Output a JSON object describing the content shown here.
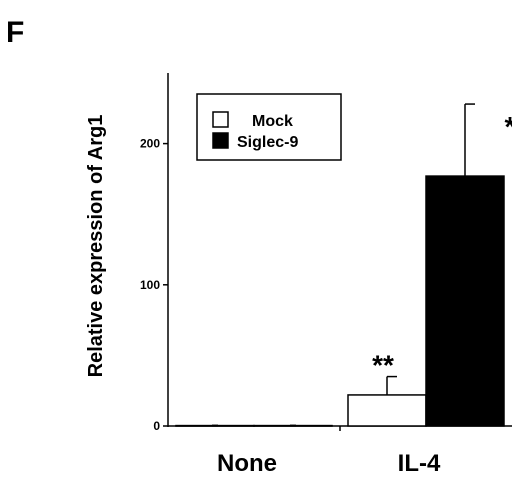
{
  "panel_label": "F",
  "chart_data": {
    "type": "bar",
    "categories": [
      "None",
      "IL-4"
    ],
    "series": [
      {
        "name": "Mock",
        "values": [
          0.3,
          22
        ],
        "errors": [
          0.3,
          13
        ],
        "color": "#ffffff"
      },
      {
        "name": "Siglec-9",
        "values": [
          0.3,
          177
        ],
        "errors": [
          0.3,
          51
        ],
        "color": "#000000"
      }
    ],
    "ylabel": "Relative expression of Arg1",
    "xlabel": "",
    "ylim": [
      0,
      250
    ],
    "yticks": [
      0,
      100,
      200
    ],
    "grid": false,
    "legend_position": "top-left",
    "annotations": [
      {
        "text": "**",
        "category": "IL-4",
        "series": "Mock"
      },
      {
        "text": "*",
        "category": "IL-4",
        "series": "Siglec-9"
      }
    ]
  }
}
